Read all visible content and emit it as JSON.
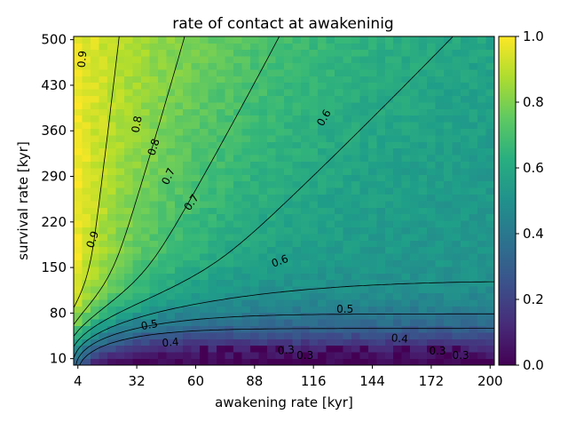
{
  "chart_data": {
    "type": "heatmap",
    "title": "rate of contact at awakeninig",
    "xlabel": "awakening rate [kyr]",
    "ylabel": "survival rate [kyr]",
    "xlim": [
      2,
      202
    ],
    "ylim": [
      0,
      505
    ],
    "x_ticks": [
      "4",
      "32",
      "60",
      "88",
      "116",
      "144",
      "172",
      "200"
    ],
    "y_ticks": [
      "10",
      "80",
      "150",
      "220",
      "290",
      "360",
      "430",
      "500"
    ],
    "colorbar": {
      "colormap": "viridis",
      "range": [
        0.0,
        1.0
      ],
      "ticks": [
        "0.0",
        "0.2",
        "0.4",
        "0.6",
        "0.8",
        "1.0"
      ]
    },
    "contour_levels": [
      0.3,
      0.4,
      0.5,
      0.6,
      0.7,
      0.8,
      0.9
    ],
    "contour_labels": [
      {
        "text": "0.9",
        "x": 6,
        "y": 470,
        "rot": -85
      },
      {
        "text": "0.8",
        "x": 32,
        "y": 370,
        "rot": -80
      },
      {
        "text": "0.8",
        "x": 40,
        "y": 335,
        "rot": -72
      },
      {
        "text": "0.7",
        "x": 47,
        "y": 290,
        "rot": -65
      },
      {
        "text": "0.7",
        "x": 58,
        "y": 250,
        "rot": -55
      },
      {
        "text": "0.6",
        "x": 121,
        "y": 380,
        "rot": -60
      },
      {
        "text": "0.9",
        "x": 11,
        "y": 193,
        "rot": -70
      },
      {
        "text": "0.6",
        "x": 100,
        "y": 160,
        "rot": -20
      },
      {
        "text": "0.5",
        "x": 38,
        "y": 62,
        "rot": -10
      },
      {
        "text": "0.5",
        "x": 131,
        "y": 86,
        "rot": 0
      },
      {
        "text": "0.4",
        "x": 48,
        "y": 35,
        "rot": -5
      },
      {
        "text": "0.4",
        "x": 157,
        "y": 41,
        "rot": 5
      },
      {
        "text": "0.3",
        "x": 103,
        "y": 23,
        "rot": -5
      },
      {
        "text": "0.3",
        "x": 112,
        "y": 15,
        "rot": 0
      },
      {
        "text": "0.3",
        "x": 175,
        "y": 22,
        "rot": 0
      },
      {
        "text": "0.3",
        "x": 186,
        "y": 15,
        "rot": 0
      }
    ]
  }
}
